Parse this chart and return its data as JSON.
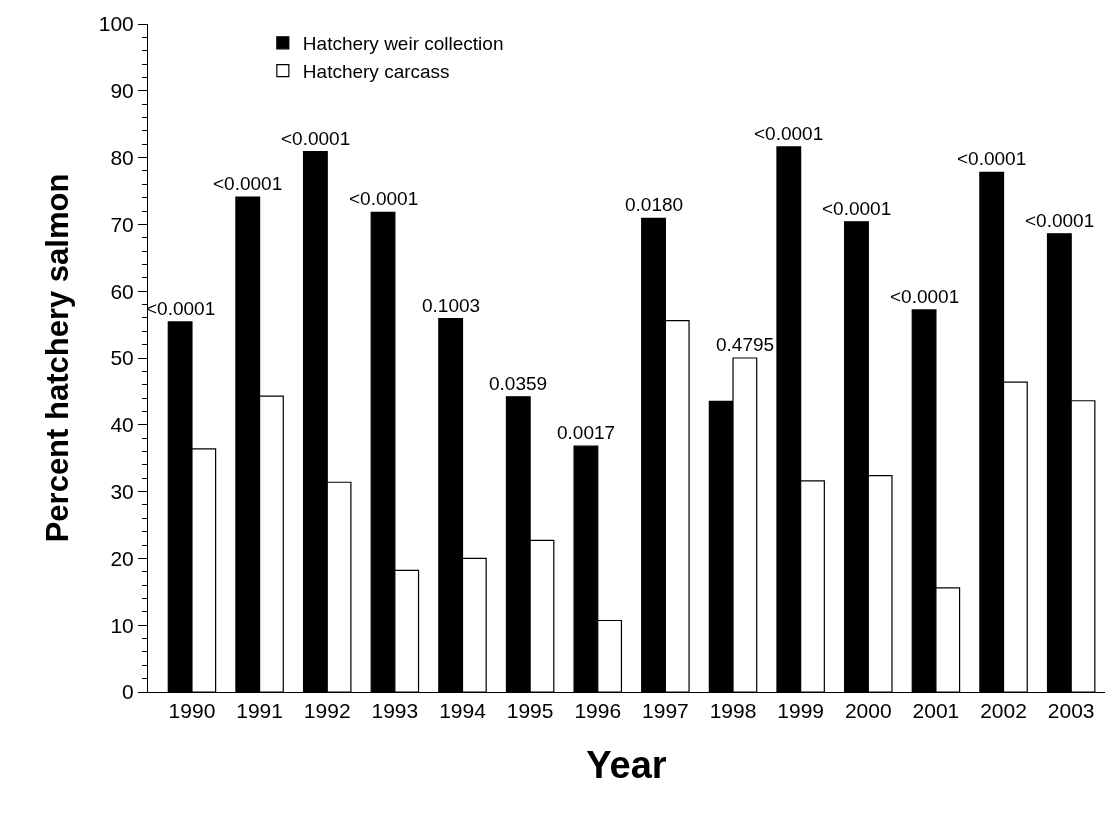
{
  "chart_data": {
    "type": "bar",
    "xlabel": "Year",
    "ylabel": "Percent hatchery salmon",
    "categories": [
      "1990",
      "1991",
      "1992",
      "1993",
      "1994",
      "1995",
      "1996",
      "1997",
      "1998",
      "1999",
      "2000",
      "2001",
      "2002",
      "2003"
    ],
    "series": [
      {
        "name": "Hatchery weir collection",
        "color": "#000000",
        "values": [
          55.4,
          74.1,
          80.9,
          71.8,
          55.9,
          44.2,
          36.8,
          70.9,
          43.5,
          81.6,
          70.4,
          57.2,
          77.8,
          68.6
        ]
      },
      {
        "name": "Hatchery carcass",
        "color": "#ffffff",
        "values": [
          36.4,
          44.3,
          31.4,
          18.2,
          20.0,
          22.7,
          10.7,
          55.6,
          50.0,
          31.6,
          32.4,
          15.6,
          46.4,
          43.6
        ]
      }
    ],
    "ylim": [
      0,
      100
    ],
    "yticks": [
      0,
      10,
      20,
      30,
      40,
      50,
      60,
      70,
      80,
      90,
      100
    ],
    "legend": "top left",
    "annotations": [
      {
        "text": "<0.0001",
        "x": "1990",
        "y": 55.4
      },
      {
        "text": "<0.0001",
        "x": "1991",
        "y": 74.1
      },
      {
        "text": "<0.0001",
        "x": "1992",
        "y": 80.9
      },
      {
        "text": "<0.0001",
        "x": "1993",
        "y": 71.8
      },
      {
        "text": "0.1003",
        "x": "1994",
        "y": 55.9
      },
      {
        "text": "0.0359",
        "x": "1995",
        "y": 44.2
      },
      {
        "text": "0.0017",
        "x": "1996",
        "y": 36.8
      },
      {
        "text": "0.0180",
        "x": "1997",
        "y": 70.9
      },
      {
        "text": "0.4795",
        "x": "1998",
        "y": 50.0
      },
      {
        "text": "<0.0001",
        "x": "1999",
        "y": 81.6
      },
      {
        "text": "<0.0001",
        "x": "2000",
        "y": 70.4
      },
      {
        "text": "<0.0001",
        "x": "2001",
        "y": 57.2
      },
      {
        "text": "<0.0001",
        "x": "2002",
        "y": 77.8
      },
      {
        "text": "<0.0001",
        "x": "2003",
        "y": 68.6
      }
    ]
  }
}
